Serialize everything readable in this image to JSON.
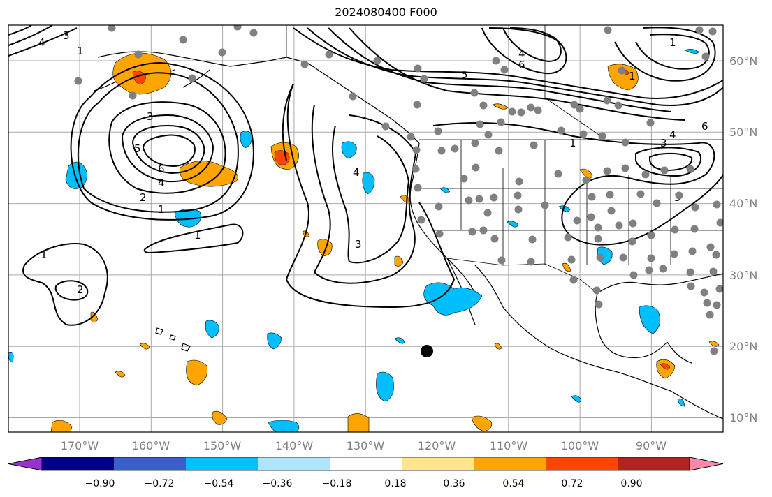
{
  "title": "2024080400 F000",
  "lon_labels": [
    "170°W",
    "160°W",
    "150°W",
    "140°W",
    "130°W",
    "120°W",
    "110°W",
    "100°W",
    "90°W"
  ],
  "lat_labels": [
    "60°N",
    "50°N",
    "40°N",
    "30°N",
    "20°N",
    "10°N"
  ],
  "colorbar": {
    "ticks": [
      "−0.90",
      "−0.72",
      "−0.54",
      "−0.36",
      "−0.18",
      "0.18",
      "0.36",
      "0.54",
      "0.72",
      "0.90"
    ],
    "colors": [
      "#9932cc",
      "#00008b",
      "#3a5fcd",
      "#00bfff",
      "#aee5fb",
      "#ffffff",
      "#ffe68a",
      "#ffa500",
      "#ff4500",
      "#b22222",
      "#ff88aa"
    ]
  },
  "contour_labels": [
    "1",
    "2",
    "3",
    "4",
    "5",
    "6"
  ],
  "field_colors": {
    "positive_light": "#ffa500",
    "positive_strong": "#ff4500",
    "negative": "#00bfff",
    "station": "#808080",
    "marker": "#000000"
  }
}
